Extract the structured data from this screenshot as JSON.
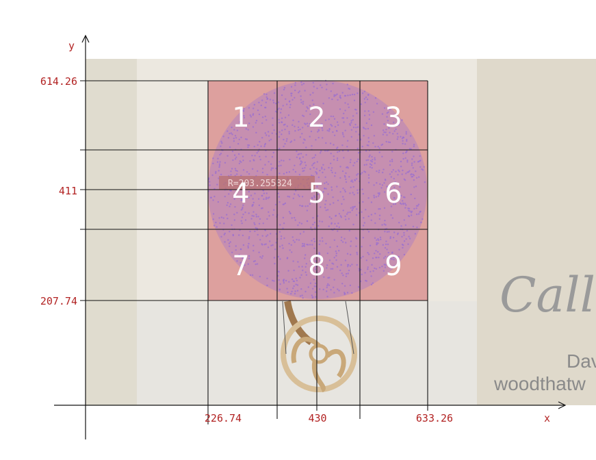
{
  "axes": {
    "x_label": "x",
    "y_label": "y",
    "x_ticks": [
      "226.74",
      "430",
      "633.26"
    ],
    "y_ticks": [
      "614.26",
      "411",
      "207.74"
    ]
  },
  "grid": {
    "cells": [
      "1",
      "2",
      "3",
      "4",
      "5",
      "6",
      "7",
      "8",
      "9"
    ]
  },
  "circle": {
    "radius_label": "R=203.255824"
  },
  "photo": {
    "signature_script": "Callig",
    "signature_name": "Dav",
    "signature_site": "woodthatw"
  },
  "colors": {
    "cell_fill": "#d98c8c",
    "scatter": "#9b6fd0",
    "axis_text": "#b22222"
  }
}
